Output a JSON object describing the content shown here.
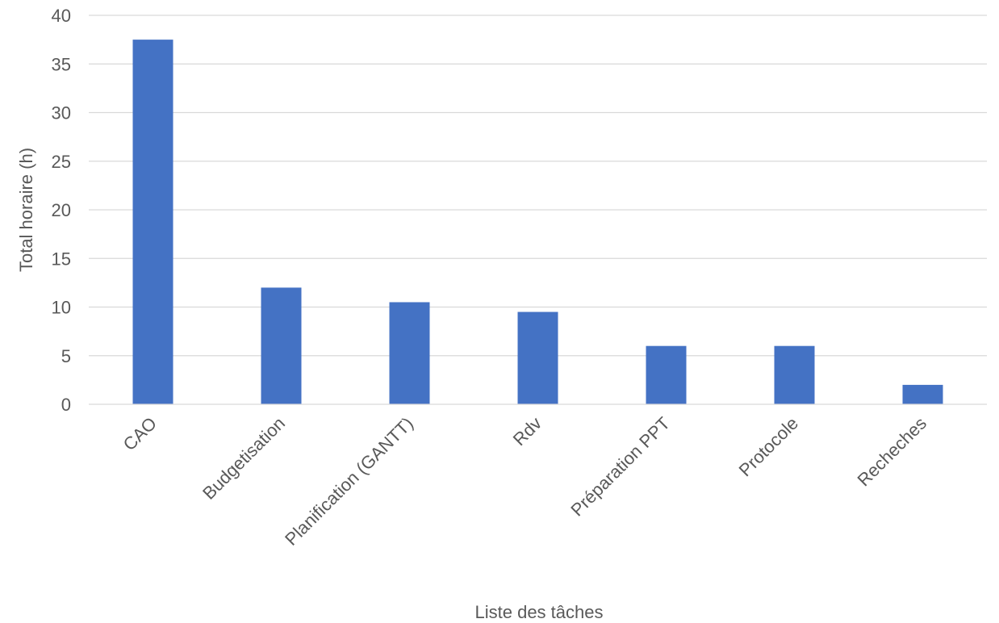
{
  "chart_data": {
    "type": "bar",
    "title": "",
    "xlabel": "Liste des tâches",
    "ylabel": "Total horaire (h)",
    "categories": [
      "CAO",
      "Budgetisation",
      "Planification (GANTT)",
      "Rdv",
      "Préparation PPT",
      "Protocole",
      "Recheches"
    ],
    "values": [
      37.5,
      12,
      10.5,
      9.5,
      6,
      6,
      2
    ],
    "ylim": [
      0,
      40
    ],
    "yticks": [
      0,
      5,
      10,
      15,
      20,
      25,
      30,
      35,
      40
    ],
    "grid": true,
    "legend": "none",
    "bar_color": "#4472c4"
  }
}
